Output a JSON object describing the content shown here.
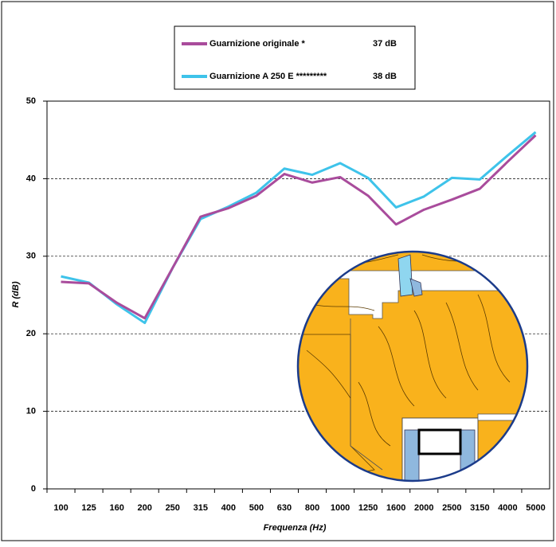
{
  "chart_data": {
    "type": "line",
    "x_label": "Frequenza (Hz)",
    "y_label": "R (dB)",
    "categories": [
      "100",
      "125",
      "160",
      "200",
      "250",
      "315",
      "400",
      "500",
      "630",
      "800",
      "1000",
      "1250",
      "1600",
      "2000",
      "2500",
      "3150",
      "4000",
      "5000"
    ],
    "series": [
      {
        "name": "Guarnizione originale *",
        "rating": "37 dB",
        "color": "#a94c9c",
        "values": [
          26.7,
          26.5,
          24.0,
          22.0,
          28.5,
          35.1,
          36.2,
          37.8,
          40.6,
          39.5,
          40.2,
          37.8,
          34.1,
          36.0,
          37.3,
          38.7,
          42.2,
          45.6
        ]
      },
      {
        "name": "Guarnizione A 250 E *********",
        "rating": "38 dB",
        "color": "#3ec3ea",
        "values": [
          27.4,
          26.6,
          23.8,
          21.4,
          28.5,
          34.8,
          36.4,
          38.2,
          41.3,
          40.5,
          42.0,
          40.1,
          36.3,
          37.7,
          40.1,
          39.9,
          43.0,
          46.0
        ]
      }
    ],
    "ylim": [
      0,
      50
    ],
    "yticks": [
      0,
      10,
      20,
      30,
      40,
      50
    ],
    "grid": true
  }
}
